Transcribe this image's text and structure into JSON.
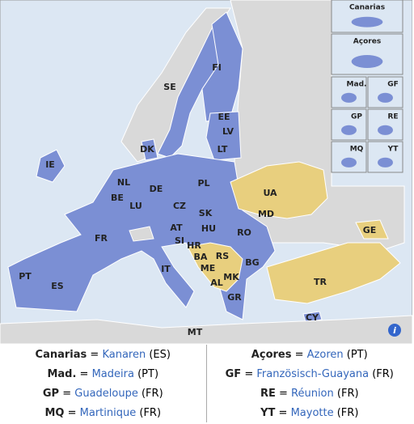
{
  "map": {
    "country_labels": [
      "SE",
      "FI",
      "EE",
      "LV",
      "LT",
      "DK",
      "IE",
      "NL",
      "BE",
      "LU",
      "DE",
      "PL",
      "CZ",
      "SK",
      "AT",
      "HU",
      "SI",
      "HR",
      "FR",
      "UA",
      "MD",
      "RO",
      "GE",
      "BA",
      "RS",
      "ME",
      "MK",
      "AL",
      "BG",
      "IT",
      "PT",
      "ES",
      "GR",
      "TR",
      "CY",
      "MT"
    ],
    "insets": [
      "Canarias",
      "Açores",
      "Mad.",
      "GF",
      "GP",
      "RE",
      "MQ",
      "YT"
    ],
    "info_icon": "i"
  },
  "legend": {
    "equals": "=",
    "rows": [
      [
        {
          "abbr": "Canarias",
          "name": "Kanaren",
          "country": "(ES)"
        },
        {
          "abbr": "Açores",
          "name": "Azoren",
          "country": "(PT)"
        }
      ],
      [
        {
          "abbr": "Mad.",
          "name": "Madeira",
          "country": "(PT)"
        },
        {
          "abbr": "GF",
          "name": "Französisch-Guayana",
          "country": "(FR)"
        }
      ],
      [
        {
          "abbr": "GP",
          "name": "Guadeloupe",
          "country": "(FR)"
        },
        {
          "abbr": "RE",
          "name": "Réunion",
          "country": "(FR)"
        }
      ],
      [
        {
          "abbr": "MQ",
          "name": "Martinique",
          "country": "(FR)"
        },
        {
          "abbr": "YT",
          "name": "Mayotte",
          "country": "(FR)"
        }
      ]
    ]
  }
}
